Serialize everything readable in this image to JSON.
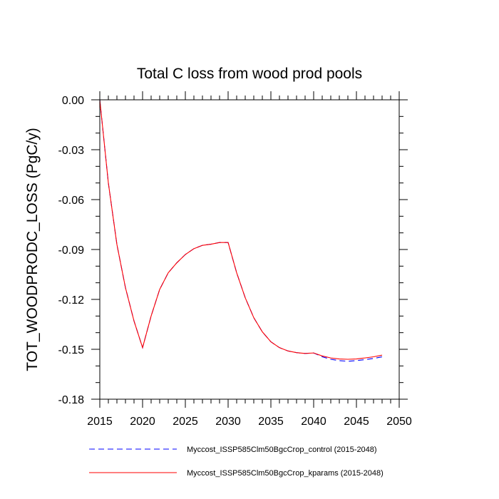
{
  "chart_data": {
    "type": "line",
    "title": "Total C loss from wood prod pools",
    "xlabel": "",
    "ylabel": "TOT_WOODPRODC_LOSS  (PgC/y)",
    "xlim": [
      2015,
      2050
    ],
    "ylim": [
      -0.18,
      0.0
    ],
    "x_ticks": [
      2015,
      2020,
      2025,
      2030,
      2035,
      2040,
      2045,
      2050
    ],
    "y_ticks": [
      0.0,
      -0.03,
      -0.06,
      -0.09,
      -0.12,
      -0.15,
      -0.18
    ],
    "x_tick_labels": [
      "2015",
      "2020",
      "2025",
      "2030",
      "2035",
      "2040",
      "2045",
      "2050"
    ],
    "y_tick_labels": [
      "0.00",
      "-0.03",
      "-0.06",
      "-0.09",
      "-0.12",
      "-0.15",
      "-0.18"
    ],
    "grid": false,
    "legend_position": "bottom",
    "x": [
      2015,
      2016,
      2017,
      2018,
      2019,
      2020,
      2021,
      2022,
      2023,
      2024,
      2025,
      2026,
      2027,
      2028,
      2029,
      2030,
      2031,
      2032,
      2033,
      2034,
      2035,
      2036,
      2037,
      2038,
      2039,
      2040,
      2041,
      2042,
      2043,
      2044,
      2045,
      2046,
      2047,
      2048
    ],
    "series": [
      {
        "name": "Myccost_ISSP585Clm50BgcCrop_control (2015-2048)",
        "color": "#0000ff",
        "dash": "dashed",
        "values": [
          0.0,
          -0.05,
          -0.087,
          -0.113,
          -0.133,
          -0.149,
          -0.13,
          -0.114,
          -0.104,
          -0.098,
          -0.093,
          -0.0895,
          -0.0875,
          -0.0868,
          -0.0858,
          -0.0858,
          -0.104,
          -0.119,
          -0.131,
          -0.1395,
          -0.1455,
          -0.149,
          -0.151,
          -0.152,
          -0.1525,
          -0.1522,
          -0.1545,
          -0.156,
          -0.1568,
          -0.1572,
          -0.1568,
          -0.1562,
          -0.1555,
          -0.1545
        ]
      },
      {
        "name": "Myccost_ISSP585Clm50BgcCrop_kparams (2015-2048)",
        "color": "#ff0000",
        "dash": "solid",
        "values": [
          0.0,
          -0.05,
          -0.087,
          -0.113,
          -0.133,
          -0.149,
          -0.13,
          -0.114,
          -0.104,
          -0.098,
          -0.093,
          -0.0895,
          -0.0875,
          -0.0868,
          -0.0858,
          -0.0858,
          -0.104,
          -0.119,
          -0.131,
          -0.1395,
          -0.1455,
          -0.149,
          -0.151,
          -0.152,
          -0.1525,
          -0.1522,
          -0.154,
          -0.1552,
          -0.1558,
          -0.156,
          -0.1558,
          -0.1552,
          -0.1545,
          -0.1535
        ]
      }
    ]
  }
}
